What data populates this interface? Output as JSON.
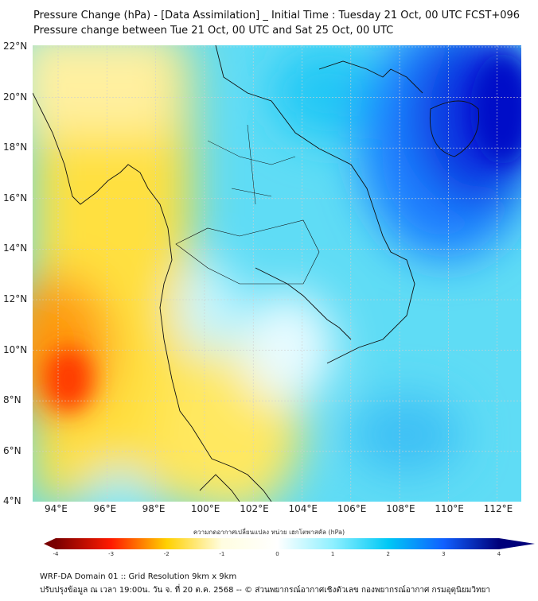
{
  "title": {
    "line1": "Pressure Change (hPa) - [Data Assimilation] _ Initial Time : Tuesday 21 Oct, 00 UTC FCST+096",
    "line2": "Pressure change between Tue 21 Oct, 00 UTC and Sat 25 Oct, 00 UTC"
  },
  "map": {
    "lat_labels": [
      "22°N",
      "20°N",
      "18°N",
      "16°N",
      "14°N",
      "12°N",
      "10°N",
      "8°N",
      "6°N",
      "4°N"
    ],
    "lon_labels": [
      "94°E",
      "96°E",
      "98°E",
      "100°E",
      "102°E",
      "104°E",
      "106°E",
      "108°E",
      "110°E",
      "112°E"
    ]
  },
  "colorbar": {
    "label": "ความกดอากาศเปลี่ยนแปลง หน่วย เฮกโตพาสคัล (hPa)",
    "ticks": [
      "-4",
      "-3",
      "-2",
      "-1",
      "0",
      "1",
      "2",
      "3",
      "4"
    ],
    "range": [
      -4,
      4
    ],
    "colors": [
      "#7a0000",
      "#ff1a00",
      "#ffd000",
      "#fffde0",
      "#ffffff",
      "#8ff0ff",
      "#00c8f5",
      "#1060ff",
      "#00007a"
    ]
  },
  "footer": {
    "line1": "WRF-DA Domain 01 :: Grid Resolution 9km x 9km",
    "line2": "ปรับปรุงข้อมูล ณ เวลา 19:00น. วัน จ. ที่ 20 ต.ค. 2568 -- © ส่วนพยากรณ์อากาศเชิงตัวเลข กองพยากรณ์อากาศ กรมอุตุนิยมวิทยา"
  }
}
